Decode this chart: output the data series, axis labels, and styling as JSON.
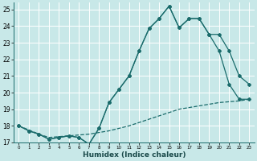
{
  "xlabel": "Humidex (Indice chaleur)",
  "xlim": [
    -0.5,
    23.5
  ],
  "ylim": [
    17,
    25.4
  ],
  "bg_color": "#c8e8e8",
  "grid_color": "#ffffff",
  "line_color": "#1a6b6b",
  "lineA_x": [
    0,
    1,
    2,
    3,
    4,
    5,
    6,
    7,
    8,
    9,
    10,
    11,
    12,
    13,
    14,
    15,
    16,
    17,
    18,
    19,
    20,
    21,
    22,
    23
  ],
  "lineA_y": [
    18.0,
    17.7,
    17.5,
    17.2,
    17.3,
    17.4,
    17.3,
    16.9,
    17.85,
    19.4,
    20.2,
    21.0,
    22.5,
    23.85,
    24.45,
    25.2,
    23.9,
    24.45,
    24.45,
    23.5,
    23.5,
    22.5,
    21.0,
    20.5
  ],
  "lineB_x": [
    0,
    1,
    2,
    3,
    4,
    5,
    6,
    7,
    8,
    9,
    10,
    11,
    12,
    13,
    14,
    15,
    16,
    17,
    18,
    19,
    20,
    21,
    22,
    23
  ],
  "lineB_y": [
    18.0,
    17.7,
    17.5,
    17.2,
    17.3,
    17.4,
    17.3,
    16.9,
    17.85,
    19.4,
    20.2,
    21.0,
    22.5,
    23.85,
    24.45,
    25.2,
    23.9,
    24.45,
    24.45,
    23.5,
    22.5,
    20.5,
    19.6,
    19.6
  ],
  "lineC_x": [
    0,
    1,
    2,
    3,
    4,
    5,
    6,
    7,
    8,
    9,
    10,
    11,
    12,
    13,
    14,
    15,
    16,
    17,
    18,
    19,
    20,
    21,
    22,
    23
  ],
  "lineC_y": [
    18.0,
    17.75,
    17.5,
    17.3,
    17.35,
    17.4,
    17.45,
    17.5,
    17.6,
    17.7,
    17.85,
    18.0,
    18.2,
    18.4,
    18.6,
    18.8,
    19.0,
    19.1,
    19.2,
    19.3,
    19.4,
    19.45,
    19.5,
    19.6
  ]
}
